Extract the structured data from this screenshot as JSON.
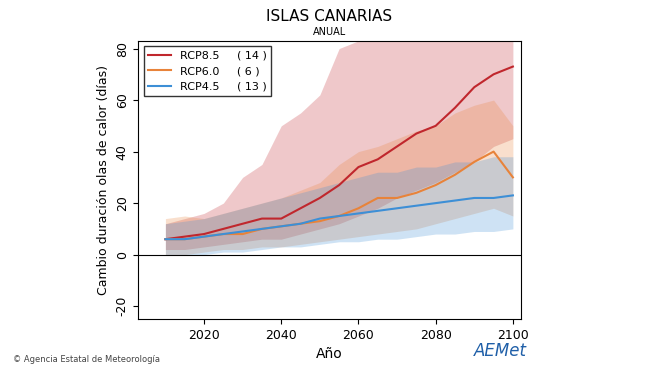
{
  "chart_data": {
    "type": "line",
    "title": "ISLAS CANARIAS",
    "subtitle": "ANUAL",
    "x_label": "Año",
    "y_label": "Cambio duración olas de calor (días)",
    "x": [
      2010,
      2015,
      2020,
      2025,
      2030,
      2035,
      2040,
      2045,
      2050,
      2055,
      2060,
      2065,
      2070,
      2075,
      2080,
      2085,
      2090,
      2095,
      2100
    ],
    "series": [
      {
        "name": "RCP8.5",
        "legend_count": "( 14 )",
        "color": "#c0272d",
        "values": [
          6,
          7,
          8,
          10,
          12,
          14,
          14,
          18,
          22,
          27,
          34,
          37,
          42,
          47,
          50,
          57,
          65,
          70,
          73
        ],
        "lower": [
          2,
          2,
          3,
          4,
          5,
          6,
          6,
          8,
          10,
          12,
          15,
          18,
          22,
          25,
          28,
          32,
          36,
          42,
          45
        ],
        "upper": [
          12,
          14,
          16,
          20,
          30,
          35,
          50,
          55,
          62,
          80,
          83,
          83,
          83,
          83,
          83,
          83,
          83,
          83,
          83
        ]
      },
      {
        "name": "RCP6.0",
        "legend_count": "( 6 )",
        "color": "#e8833a",
        "values": [
          6,
          6,
          7,
          8,
          8,
          10,
          11,
          12,
          13,
          15,
          18,
          22,
          22,
          24,
          27,
          31,
          36,
          40,
          30
        ],
        "lower": [
          0,
          0,
          1,
          2,
          2,
          3,
          3,
          4,
          5,
          6,
          7,
          8,
          9,
          10,
          12,
          14,
          16,
          18,
          15
        ],
        "upper": [
          14,
          15,
          14,
          16,
          18,
          20,
          22,
          25,
          28,
          35,
          40,
          42,
          45,
          48,
          50,
          55,
          58,
          60,
          50
        ]
      },
      {
        "name": "RCP4.5",
        "legend_count": "( 13 )",
        "color": "#3d8fd6",
        "values": [
          6,
          6,
          7,
          8,
          9,
          10,
          11,
          12,
          14,
          15,
          16,
          17,
          18,
          19,
          20,
          21,
          22,
          22,
          23
        ],
        "lower": [
          0,
          0,
          0,
          1,
          1,
          2,
          3,
          3,
          4,
          5,
          5,
          6,
          6,
          7,
          8,
          8,
          9,
          9,
          10
        ],
        "upper": [
          12,
          13,
          14,
          16,
          18,
          20,
          22,
          24,
          26,
          28,
          30,
          32,
          32,
          34,
          34,
          36,
          36,
          38,
          38
        ]
      }
    ],
    "xlim": [
      2003,
      2102
    ],
    "xticks": [
      2020,
      2040,
      2060,
      2080,
      2100
    ],
    "ylim": [
      -25,
      83
    ],
    "yticks": [
      -20,
      0,
      20,
      40,
      60,
      80
    ],
    "grid": false,
    "legend": "upper left",
    "annotations": [
      "© Agencia Estatal de Meteorología",
      "AEMet"
    ]
  }
}
